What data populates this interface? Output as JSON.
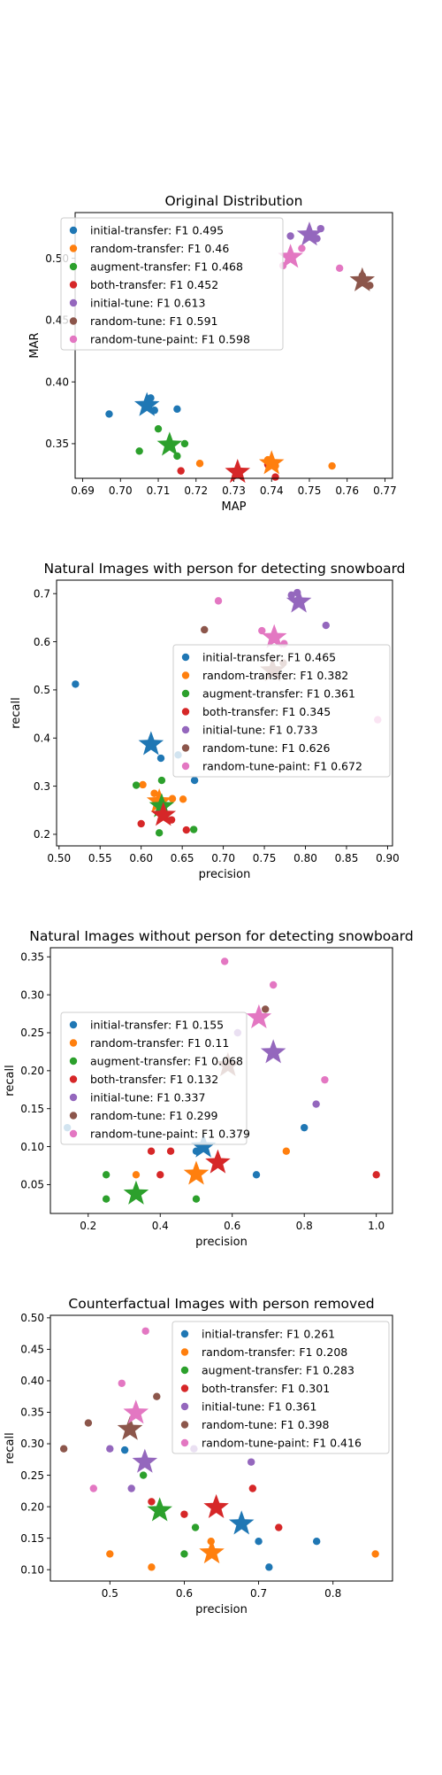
{
  "series_colors": [
    "#1f77b4",
    "#ff7f0e",
    "#2ca02c",
    "#d62728",
    "#9467bd",
    "#8c564b",
    "#e377c2"
  ],
  "chart_data": [
    {
      "type": "scatter",
      "title": "Original Distribution",
      "xlabel": "MAP",
      "ylabel": "MAR",
      "xlim": [
        0.688,
        0.772
      ],
      "ylim": [
        0.322,
        0.537
      ],
      "xticks": [
        "0.69",
        "0.70",
        "0.71",
        "0.72",
        "0.73",
        "0.74",
        "0.75",
        "0.76",
        "0.77"
      ],
      "xtick_values": [
        0.69,
        0.7,
        0.71,
        0.72,
        0.73,
        0.74,
        0.75,
        0.76,
        0.77
      ],
      "yticks": [
        "0.35",
        "0.40",
        "0.45",
        "0.50"
      ],
      "ytick_values": [
        0.35,
        0.4,
        0.45,
        0.5
      ],
      "legend_position": "upper-left",
      "series": [
        {
          "name": "initial-transfer: F1 0.495",
          "points": [
            [
              0.697,
              0.374
            ],
            [
              0.708,
              0.387
            ],
            [
              0.709,
              0.377
            ],
            [
              0.715,
              0.378
            ]
          ],
          "star": [
            0.707,
            0.381
          ]
        },
        {
          "name": "random-transfer: F1 0.46",
          "points": [
            [
              0.721,
              0.334
            ],
            [
              0.739,
              0.337
            ],
            [
              0.741,
              0.332
            ],
            [
              0.756,
              0.332
            ]
          ],
          "star": [
            0.74,
            0.334
          ]
        },
        {
          "name": "augment-transfer: F1 0.468",
          "points": [
            [
              0.705,
              0.344
            ],
            [
              0.71,
              0.362
            ],
            [
              0.715,
              0.34
            ],
            [
              0.717,
              0.35
            ]
          ],
          "star": [
            0.713,
            0.349
          ]
        },
        {
          "name": "both-transfer: F1 0.452",
          "points": [
            [
              0.716,
              0.328
            ],
            [
              0.739,
              0.333
            ],
            [
              0.741,
              0.323
            ]
          ],
          "star": [
            0.731,
            0.327
          ]
        },
        {
          "name": "initial-tune: F1 0.613",
          "points": [
            [
              0.745,
              0.518
            ],
            [
              0.752,
              0.516
            ],
            [
              0.753,
              0.524
            ]
          ],
          "star": [
            0.75,
            0.519
          ]
        },
        {
          "name": "random-tune: F1 0.591",
          "points": [
            [
              0.764,
              0.486
            ],
            [
              0.766,
              0.478
            ]
          ],
          "star": [
            0.764,
            0.482
          ]
        },
        {
          "name": "random-tune-paint: F1 0.598",
          "points": [
            [
              0.743,
              0.494
            ],
            [
              0.748,
              0.508
            ],
            [
              0.758,
              0.492
            ]
          ],
          "star": [
            0.745,
            0.501
          ]
        }
      ]
    },
    {
      "type": "scatter",
      "title": "Natural Images with person for detecting snowboard",
      "xlabel": "precision",
      "ylabel": "recall",
      "xlim": [
        0.497,
        0.906
      ],
      "ylim": [
        0.176,
        0.728
      ],
      "xticks": [
        "0.50",
        "0.55",
        "0.60",
        "0.65",
        "0.70",
        "0.75",
        "0.80",
        "0.85",
        "0.90"
      ],
      "xtick_values": [
        0.5,
        0.55,
        0.6,
        0.65,
        0.7,
        0.75,
        0.8,
        0.85,
        0.9
      ],
      "yticks": [
        "0.2",
        "0.3",
        "0.4",
        "0.5",
        "0.6",
        "0.7"
      ],
      "ytick_values": [
        0.2,
        0.3,
        0.4,
        0.5,
        0.6,
        0.7
      ],
      "legend_position": "center-right",
      "series": [
        {
          "name": "initial-transfer: F1 0.465",
          "points": [
            [
              0.52,
              0.512
            ],
            [
              0.624,
              0.358
            ],
            [
              0.645,
              0.365
            ],
            [
              0.665,
              0.312
            ]
          ],
          "star": [
            0.612,
            0.387
          ]
        },
        {
          "name": "random-transfer: F1 0.382",
          "points": [
            [
              0.602,
              0.303
            ],
            [
              0.616,
              0.285
            ],
            [
              0.638,
              0.274
            ],
            [
              0.651,
              0.273
            ]
          ],
          "star": [
            0.622,
            0.268
          ]
        },
        {
          "name": "augment-transfer: F1 0.361",
          "points": [
            [
              0.594,
              0.302
            ],
            [
              0.622,
              0.203
            ],
            [
              0.625,
              0.312
            ],
            [
              0.664,
              0.21
            ]
          ],
          "star": [
            0.625,
            0.258
          ]
        },
        {
          "name": "both-transfer: F1 0.345",
          "points": [
            [
              0.6,
              0.222
            ],
            [
              0.637,
              0.23
            ],
            [
              0.655,
              0.209
            ]
          ],
          "star": [
            0.627,
            0.24
          ]
        },
        {
          "name": "initial-tune: F1 0.733",
          "points": [
            [
              0.783,
              0.697
            ],
            [
              0.79,
              0.702
            ],
            [
              0.825,
              0.634
            ]
          ],
          "star": [
            0.792,
            0.683
          ]
        },
        {
          "name": "random-tune: F1 0.626",
          "points": [
            [
              0.677,
              0.625
            ],
            [
              0.773,
              0.556
            ]
          ],
          "star": [
            0.76,
            0.54
          ]
        },
        {
          "name": "random-tune-paint: F1 0.672",
          "points": [
            [
              0.694,
              0.685
            ],
            [
              0.747,
              0.623
            ],
            [
              0.774,
              0.596
            ],
            [
              0.888,
              0.438
            ]
          ],
          "star": [
            0.762,
            0.609
          ]
        }
      ]
    },
    {
      "type": "scatter",
      "title": "Natural Images without person for detecting snowboard",
      "xlabel": "precision",
      "ylabel": "recall",
      "xlim": [
        0.095,
        1.045
      ],
      "ylim": [
        0.012,
        0.362
      ],
      "xticks": [
        "0.2",
        "0.4",
        "0.6",
        "0.8",
        "1.0"
      ],
      "xtick_values": [
        0.2,
        0.4,
        0.6,
        0.8,
        1.0
      ],
      "yticks": [
        "0.05",
        "0.10",
        "0.15",
        "0.20",
        "0.25",
        "0.30",
        "0.35"
      ],
      "ytick_values": [
        0.05,
        0.1,
        0.15,
        0.2,
        0.25,
        0.3,
        0.35
      ],
      "legend_position": "center-left",
      "series": [
        {
          "name": "initial-transfer: F1 0.155",
          "points": [
            [
              0.142,
              0.125
            ],
            [
              0.5,
              0.094
            ],
            [
              0.667,
              0.063
            ],
            [
              0.8,
              0.125
            ]
          ],
          "star": [
            0.52,
            0.1
          ]
        },
        {
          "name": "random-transfer: F1 0.11",
          "points": [
            [
              0.333,
              0.063
            ],
            [
              0.5,
              0.063
            ],
            [
              0.75,
              0.094
            ]
          ],
          "star": [
            0.5,
            0.064
          ]
        },
        {
          "name": "augment-transfer: F1 0.068",
          "points": [
            [
              0.25,
              0.031
            ],
            [
              0.25,
              0.063
            ],
            [
              0.5,
              0.031
            ]
          ],
          "star": [
            0.333,
            0.038
          ]
        },
        {
          "name": "both-transfer: F1 0.132",
          "points": [
            [
              0.375,
              0.094
            ],
            [
              0.4,
              0.063
            ],
            [
              0.429,
              0.094
            ],
            [
              1.0,
              0.063
            ]
          ],
          "star": [
            0.56,
            0.079
          ]
        },
        {
          "name": "initial-tune: F1 0.337",
          "points": [
            [
              0.615,
              0.25
            ],
            [
              0.833,
              0.156
            ]
          ],
          "star": [
            0.714,
            0.224
          ]
        },
        {
          "name": "random-tune: F1 0.299",
          "points": [
            [
              0.692,
              0.281
            ]
          ],
          "star": [
            0.588,
            0.207
          ]
        },
        {
          "name": "random-tune-paint: F1 0.379",
          "points": [
            [
              0.579,
              0.344
            ],
            [
              0.714,
              0.313
            ],
            [
              0.857,
              0.188
            ]
          ],
          "star": [
            0.674,
            0.27
          ]
        }
      ]
    },
    {
      "type": "scatter",
      "title": "Counterfactual Images with person removed",
      "xlabel": "precision",
      "ylabel": "recall",
      "xlim": [
        0.42,
        0.88
      ],
      "ylim": [
        0.082,
        0.504
      ],
      "xticks": [
        "0.5",
        "0.6",
        "0.7",
        "0.8"
      ],
      "xtick_values": [
        0.5,
        0.6,
        0.7,
        0.8
      ],
      "yticks": [
        "0.10",
        "0.15",
        "0.20",
        "0.25",
        "0.30",
        "0.35",
        "0.40",
        "0.45",
        "0.50"
      ],
      "ytick_values": [
        0.1,
        0.15,
        0.2,
        0.25,
        0.3,
        0.35,
        0.4,
        0.45,
        0.5
      ],
      "legend_position": "upper-right",
      "series": [
        {
          "name": "initial-transfer: F1 0.261",
          "points": [
            [
              0.52,
              0.29
            ],
            [
              0.7,
              0.145
            ],
            [
              0.714,
              0.104
            ],
            [
              0.778,
              0.145
            ]
          ],
          "star": [
            0.677,
            0.173
          ]
        },
        {
          "name": "random-transfer: F1 0.208",
          "points": [
            [
              0.5,
              0.125
            ],
            [
              0.556,
              0.104
            ],
            [
              0.636,
              0.145
            ],
            [
              0.857,
              0.125
            ]
          ],
          "star": [
            0.637,
            0.127
          ]
        },
        {
          "name": "augment-transfer: F1 0.283",
          "points": [
            [
              0.545,
              0.25
            ],
            [
              0.6,
              0.125
            ],
            [
              0.615,
              0.167
            ]
          ],
          "star": [
            0.567,
            0.194
          ]
        },
        {
          "name": "both-transfer: F1 0.301",
          "points": [
            [
              0.556,
              0.208
            ],
            [
              0.6,
              0.188
            ],
            [
              0.692,
              0.229
            ],
            [
              0.727,
              0.167
            ]
          ],
          "star": [
            0.643,
            0.199
          ]
        },
        {
          "name": "initial-tune: F1 0.361",
          "points": [
            [
              0.5,
              0.292
            ],
            [
              0.529,
              0.229
            ],
            [
              0.613,
              0.292
            ],
            [
              0.69,
              0.271
            ]
          ],
          "star": [
            0.547,
            0.271
          ]
        },
        {
          "name": "random-tune: F1 0.398",
          "points": [
            [
              0.438,
              0.292
            ],
            [
              0.471,
              0.333
            ],
            [
              0.563,
              0.375
            ]
          ],
          "star": [
            0.527,
            0.323
          ]
        },
        {
          "name": "random-tune-paint: F1 0.416",
          "points": [
            [
              0.478,
              0.229
            ],
            [
              0.516,
              0.396
            ],
            [
              0.548,
              0.479
            ]
          ],
          "star": [
            0.535,
            0.349
          ]
        }
      ]
    }
  ]
}
